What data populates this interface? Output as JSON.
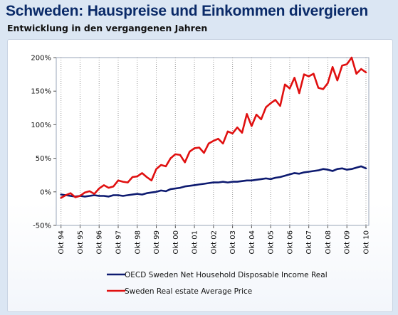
{
  "title": "Schweden: Hauspreise und Einkommen divergieren",
  "subtitle": "Entwicklung in den vergangenen Jahren",
  "chart_data": {
    "type": "line",
    "x_tick_labels": [
      "Okt 94",
      "Okt 95",
      "Okt 96",
      "Okt 97",
      "Okt 98",
      "Okt 99",
      "Okt 00",
      "Okt 01",
      "Okt 02",
      "Okt 03",
      "Okt 04",
      "Okt 05",
      "Okt 06",
      "Okt 07",
      "Okt 08",
      "Okt 09",
      "Okt 10"
    ],
    "y_tick_labels": [
      "200%",
      "150%",
      "100%",
      "50%",
      "0%",
      "-50%"
    ],
    "ylim": [
      -50,
      200
    ],
    "grid": "vertical dotted lines at each year tick",
    "legend_position": "bottom",
    "series": [
      {
        "name": "OECD Sweden Net Household Disposable Income Real",
        "color": "#0d1a70",
        "x": [
          1994.75,
          1995.0,
          1995.25,
          1995.5,
          1995.75,
          1996.0,
          1996.25,
          1996.5,
          1996.75,
          1997.0,
          1997.25,
          1997.5,
          1997.75,
          1998.0,
          1998.25,
          1998.5,
          1998.75,
          1999.0,
          1999.25,
          1999.5,
          1999.75,
          2000.0,
          2000.25,
          2000.5,
          2000.75,
          2001.0,
          2001.25,
          2001.5,
          2001.75,
          2002.0,
          2002.25,
          2002.5,
          2002.75,
          2003.0,
          2003.25,
          2003.5,
          2003.75,
          2004.0,
          2004.25,
          2004.5,
          2004.75,
          2005.0,
          2005.25,
          2005.5,
          2005.75,
          2006.0,
          2006.25,
          2006.5,
          2006.75,
          2007.0,
          2007.25,
          2007.5,
          2007.75,
          2008.0,
          2008.25,
          2008.5,
          2008.75,
          2009.0,
          2009.25,
          2009.5,
          2009.75,
          2010.0,
          2010.25,
          2010.5,
          2010.75
        ],
        "y": [
          -4,
          -5,
          -6,
          -7,
          -6,
          -7,
          -6,
          -5,
          -6,
          -6,
          -7,
          -5,
          -5,
          -6,
          -5,
          -4,
          -3,
          -4,
          -2,
          -1,
          0,
          2,
          1,
          4,
          5,
          6,
          8,
          9,
          10,
          11,
          12,
          13,
          14,
          14,
          15,
          14,
          15,
          15,
          16,
          17,
          17,
          18,
          19,
          20,
          19,
          21,
          22,
          24,
          26,
          28,
          27,
          29,
          30,
          31,
          32,
          34,
          33,
          31,
          34,
          35,
          33,
          34,
          36,
          38,
          35
        ]
      },
      {
        "name": "Sweden Real estate Average Price",
        "color": "#e01010",
        "x": [
          1994.75,
          1995.0,
          1995.25,
          1995.5,
          1995.75,
          1996.0,
          1996.25,
          1996.5,
          1996.75,
          1997.0,
          1997.25,
          1997.5,
          1997.75,
          1998.0,
          1998.25,
          1998.5,
          1998.75,
          1999.0,
          1999.25,
          1999.5,
          1999.75,
          2000.0,
          2000.25,
          2000.5,
          2000.75,
          2001.0,
          2001.25,
          2001.5,
          2001.75,
          2002.0,
          2002.25,
          2002.5,
          2002.75,
          2003.0,
          2003.25,
          2003.5,
          2003.75,
          2004.0,
          2004.25,
          2004.5,
          2004.75,
          2005.0,
          2005.25,
          2005.5,
          2005.75,
          2006.0,
          2006.25,
          2006.5,
          2006.75,
          2007.0,
          2007.25,
          2007.5,
          2007.75,
          2008.0,
          2008.25,
          2008.5,
          2008.75,
          2009.0,
          2009.25,
          2009.5,
          2009.75,
          2010.0,
          2010.25,
          2010.5,
          2010.75
        ],
        "y": [
          -9,
          -5,
          -2,
          -8,
          -6,
          -1,
          1,
          -3,
          5,
          10,
          6,
          8,
          17,
          15,
          14,
          22,
          23,
          28,
          22,
          17,
          34,
          40,
          38,
          50,
          56,
          55,
          44,
          60,
          65,
          66,
          58,
          72,
          76,
          79,
          72,
          90,
          87,
          96,
          88,
          116,
          98,
          115,
          108,
          126,
          132,
          137,
          128,
          160,
          154,
          170,
          147,
          175,
          172,
          176,
          155,
          153,
          162,
          186,
          166,
          188,
          190,
          200,
          176,
          183,
          178
        ]
      }
    ]
  }
}
